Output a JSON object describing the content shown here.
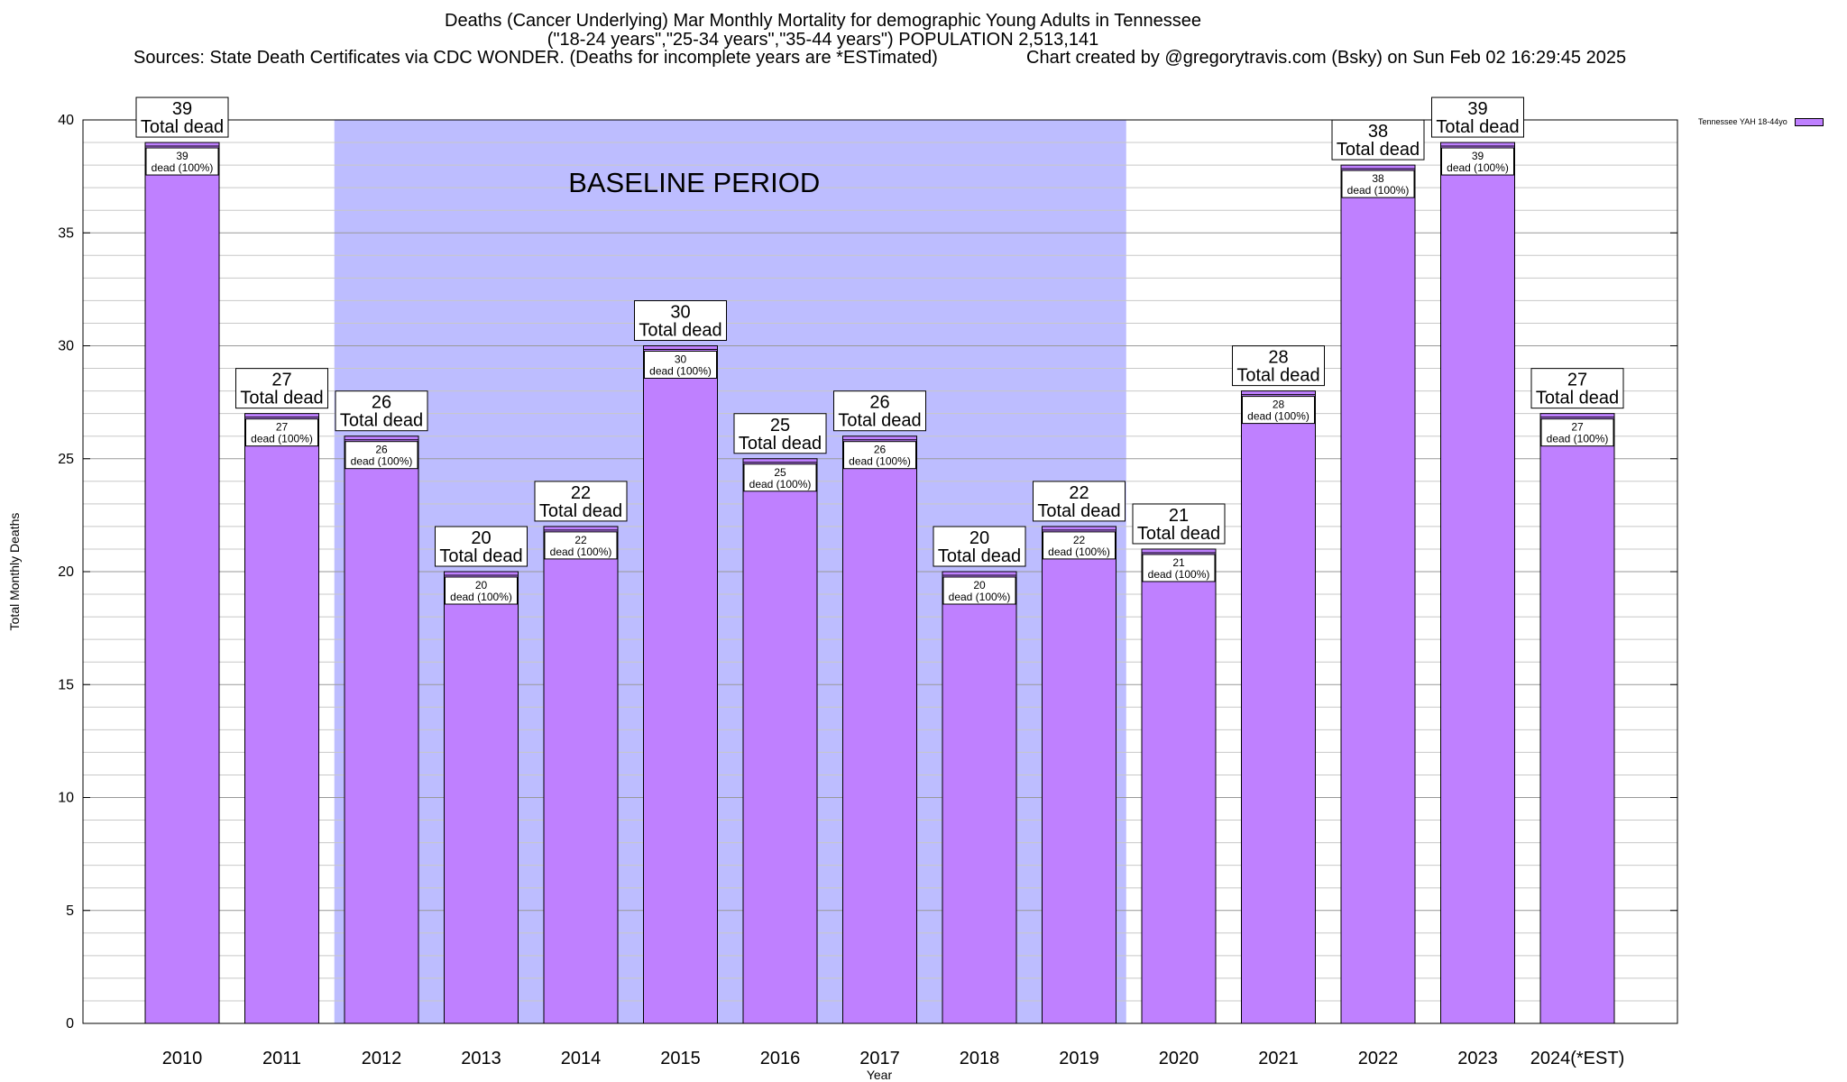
{
  "header": {
    "title_line1": "Deaths (Cancer Underlying) Mar Monthly Mortality for demographic Young Adults in Tennessee",
    "title_line2": "(\"18-24 years\",\"25-34 years\",\"35-44 years\") POPULATION 2,513,141",
    "sources": "Sources: State Death Certificates via CDC WONDER. (Deaths for incomplete years are *ESTimated)",
    "credit": "Chart created by @gregorytravis.com (Bsky) on Sun Feb 02 16:29:45 2025"
  },
  "colors": {
    "bar_fill": "#bf80ff",
    "bar_top": "#9b59d9",
    "baseline_fill": "#bdbdff",
    "grid": "#b0b0b0"
  },
  "chart_data": {
    "type": "bar",
    "xlabel": "Year",
    "ylabel": "Total Monthly Deaths",
    "ylim": [
      0,
      40
    ],
    "yticks": [
      0,
      5,
      10,
      15,
      20,
      25,
      30,
      35,
      40
    ],
    "grid": true,
    "legend_position": "top-right",
    "categories": [
      "2010",
      "2011",
      "2012",
      "2013",
      "2014",
      "2015",
      "2016",
      "2017",
      "2018",
      "2019",
      "2020",
      "2021",
      "2022",
      "2023",
      "2024(*EST)"
    ],
    "series": [
      {
        "name": "Tennessee YAH 18-44yo",
        "values": [
          39,
          27,
          26,
          20,
          22,
          30,
          25,
          26,
          20,
          22,
          21,
          28,
          38,
          39,
          27
        ]
      }
    ],
    "total_label": "Total dead",
    "segment_label": "dead (100%)",
    "baseline": {
      "label": "BASELINE PERIOD",
      "start": "2012",
      "end": "2019"
    }
  }
}
